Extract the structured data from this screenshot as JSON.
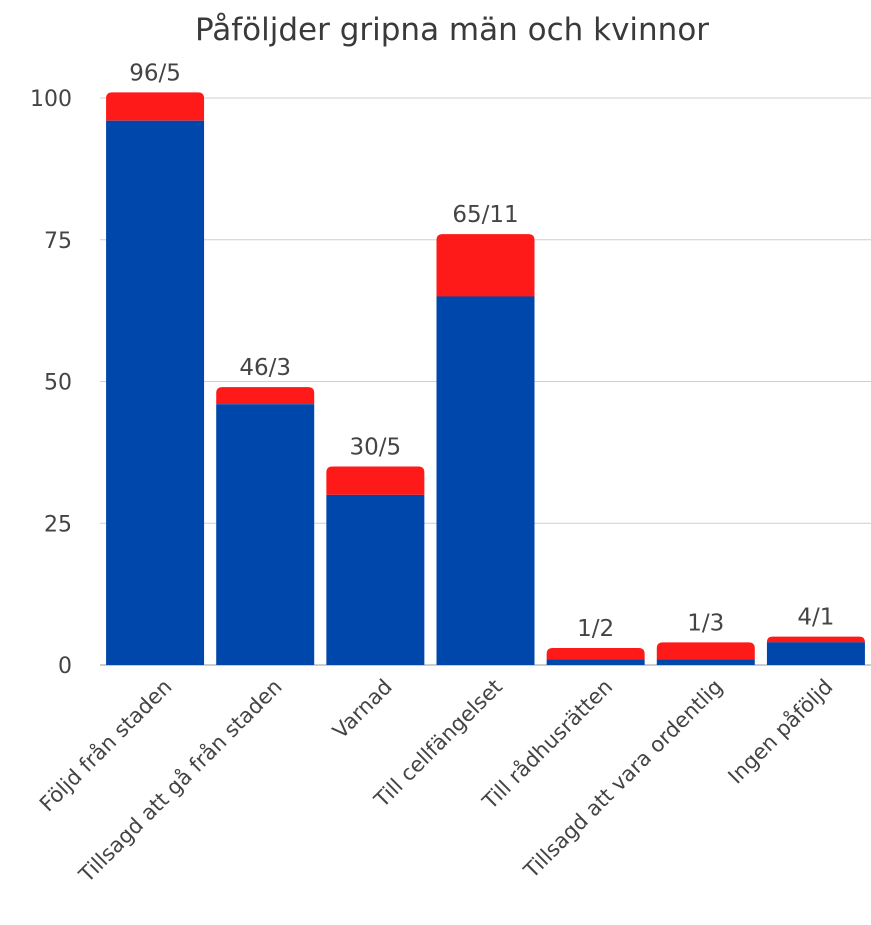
{
  "chart_data": {
    "type": "bar",
    "stacked": true,
    "title": "Påföljder gripna män och kvinnor",
    "categories": [
      "Följd från staden",
      "Tillsagd att gå från staden",
      "Varnad",
      "Till cellfängelset",
      "Till rådhusrätten",
      "Tillsagd att vara ordentlig",
      "Ingen påföljd"
    ],
    "series": [
      {
        "values": [
          96,
          46,
          30,
          65,
          1,
          1,
          4
        ],
        "color": "#0047ab"
      },
      {
        "values": [
          5,
          3,
          5,
          11,
          2,
          3,
          1
        ],
        "color": "#ff1a1a"
      }
    ],
    "data_labels": [
      "96/5",
      "46/3",
      "30/5",
      "65/11",
      "1/2",
      "1/3",
      "4/1"
    ],
    "y_ticks": [
      0,
      25,
      50,
      75,
      100
    ],
    "ylim": [
      0,
      100
    ],
    "grid": true,
    "legend": "none"
  }
}
